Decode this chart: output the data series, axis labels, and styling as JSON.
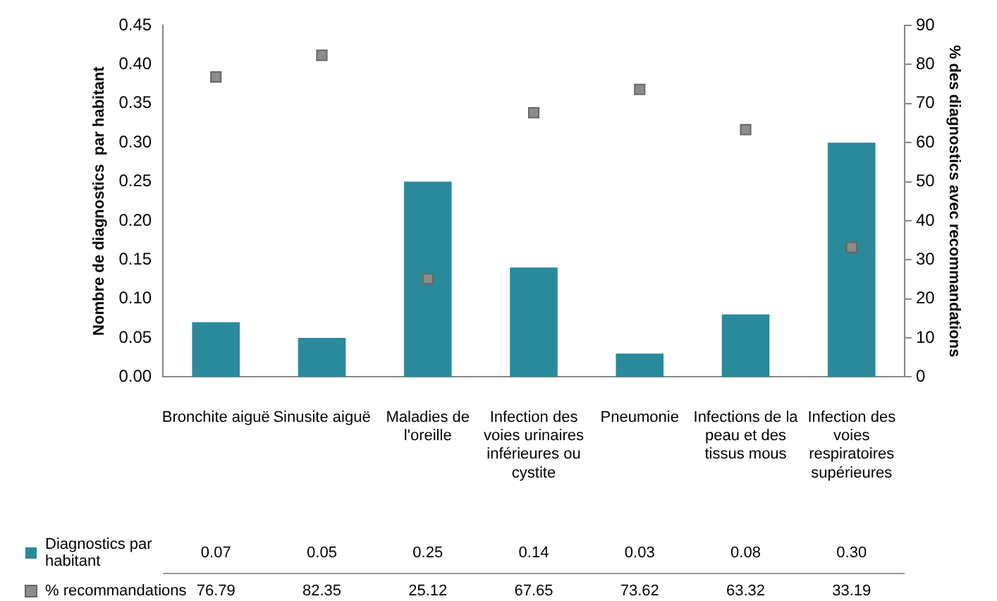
{
  "chart_data": {
    "type": "bar",
    "categories": [
      "Bronchite aiguë",
      "Sinusite aiguë",
      "Maladies de l'oreille",
      "Infection des voies urinaires inférieures ou cystite",
      "Pneumonie",
      "Infections de la peau et des tissus mous",
      "Infection des voies respiratoires supérieures"
    ],
    "ylabel": "Nombre de diagnostics  par habitant",
    "y2label": "% des diagnostics avec recommandations",
    "ylim": [
      0,
      0.45
    ],
    "yticks": [
      {
        "value": 0,
        "label": "0.00"
      },
      {
        "value": 0.05,
        "label": "0.05"
      },
      {
        "value": 0.1,
        "label": "0.10"
      },
      {
        "value": 0.15,
        "label": "0.15"
      },
      {
        "value": 0.2,
        "label": "0.20"
      },
      {
        "value": 0.25,
        "label": "0.25"
      },
      {
        "value": 0.3,
        "label": "0.30"
      },
      {
        "value": 0.35,
        "label": "0.35"
      },
      {
        "value": 0.4,
        "label": "0.40"
      },
      {
        "value": 0.45,
        "label": "0.45"
      }
    ],
    "y2lim": [
      0,
      90
    ],
    "y2ticks": [
      0,
      10,
      20,
      30,
      40,
      50,
      60,
      70,
      80,
      90
    ],
    "series": [
      {
        "name": "Diagnostics par habitant",
        "color": "#2a8a9c",
        "values": [
          0.07,
          0.05,
          0.25,
          0.14,
          0.03,
          0.08,
          0.3
        ],
        "value_labels": [
          "0.07",
          "0.05",
          "0.25",
          "0.14",
          "0.03",
          "0.08",
          "0.30"
        ]
      },
      {
        "name": "% recommandations",
        "type": "scatter",
        "axis": "y2",
        "marker": "square",
        "color": "#8c8c8c",
        "values": [
          76.79,
          82.35,
          25.12,
          67.65,
          73.62,
          63.32,
          33.19
        ],
        "value_labels": [
          "76.79",
          "82.35",
          "25.12",
          "67.65",
          "73.62",
          "63.32",
          "33.19"
        ]
      }
    ],
    "grid": false,
    "legend": "bottom"
  }
}
